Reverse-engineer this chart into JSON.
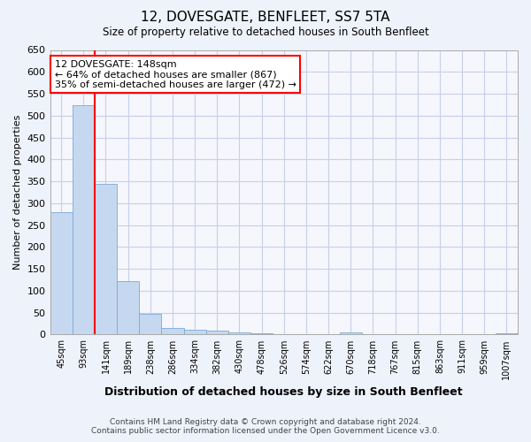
{
  "title": "12, DOVESGATE, BENFLEET, SS7 5TA",
  "subtitle": "Size of property relative to detached houses in South Benfleet",
  "xlabel": "Distribution of detached houses by size in South Benfleet",
  "ylabel": "Number of detached properties",
  "categories": [
    "45sqm",
    "93sqm",
    "141sqm",
    "189sqm",
    "238sqm",
    "286sqm",
    "334sqm",
    "382sqm",
    "430sqm",
    "478sqm",
    "526sqm",
    "574sqm",
    "622sqm",
    "670sqm",
    "718sqm",
    "767sqm",
    "815sqm",
    "863sqm",
    "911sqm",
    "959sqm",
    "1007sqm"
  ],
  "values": [
    280,
    523,
    345,
    122,
    48,
    15,
    10,
    9,
    5,
    2,
    0,
    0,
    0,
    4,
    0,
    0,
    0,
    0,
    0,
    0,
    3
  ],
  "bar_color": "#c5d8f0",
  "bar_edge_color": "#7aaad4",
  "red_line_index": 1,
  "ylim": [
    0,
    650
  ],
  "yticks": [
    0,
    50,
    100,
    150,
    200,
    250,
    300,
    350,
    400,
    450,
    500,
    550,
    600,
    650
  ],
  "annotation_title": "12 DOVESGATE: 148sqm",
  "annotation_line1": "← 64% of detached houses are smaller (867)",
  "annotation_line2": "35% of semi-detached houses are larger (472) →",
  "footer_line1": "Contains HM Land Registry data © Crown copyright and database right 2024.",
  "footer_line2": "Contains public sector information licensed under the Open Government Licence v3.0.",
  "background_color": "#eef2fb",
  "plot_background_color": "#f5f7fd",
  "grid_color": "#c8cfe8"
}
